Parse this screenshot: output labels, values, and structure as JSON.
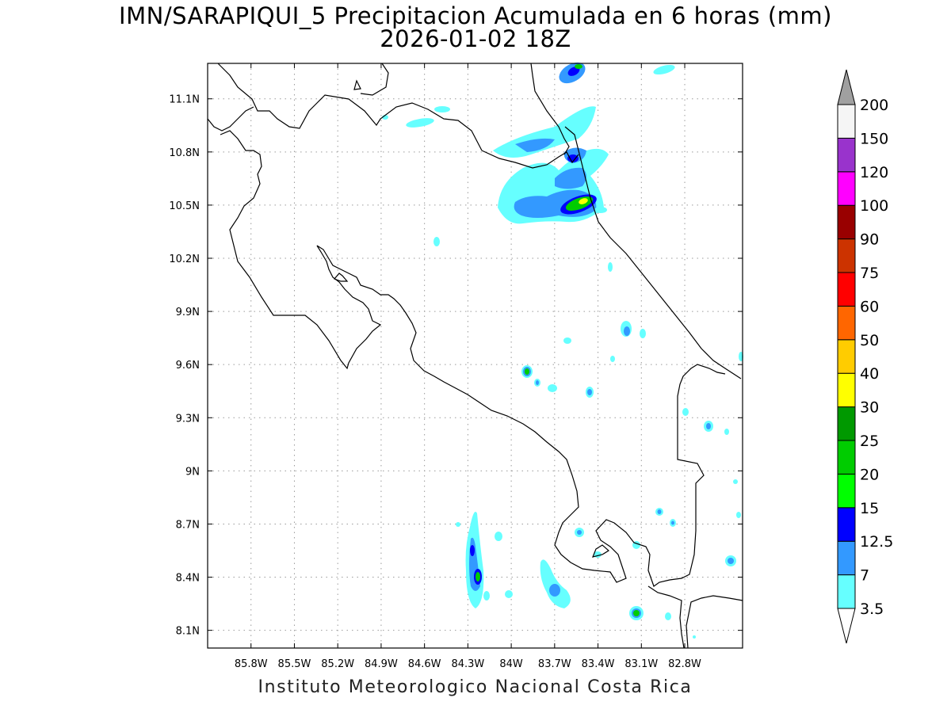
{
  "title": "IMN/SARAPIQUI_5 Precipitacion Acumulada en 6 horas (mm)",
  "subtitle": "2026-01-02 18Z",
  "footer": "Instituto Meteorologico Nacional Costa Rica",
  "map": {
    "lon_range": [
      -86.1,
      -82.4
    ],
    "lat_range": [
      8.0,
      11.3
    ],
    "lon_ticks": [
      "85.8W",
      "85.5W",
      "85.2W",
      "84.9W",
      "84.6W",
      "84.3W",
      "84W",
      "83.7W",
      "83.4W",
      "83.1W",
      "82.8W"
    ],
    "lat_ticks": [
      "8.1N",
      "8.4N",
      "8.7N",
      "9N",
      "9.3N",
      "9.6N",
      "9.9N",
      "10.2N",
      "10.5N",
      "10.8N",
      "11.1N"
    ],
    "grid": true
  },
  "colorbar": {
    "levels": [
      "3.5",
      "7",
      "12.5",
      "15",
      "20",
      "25",
      "30",
      "40",
      "50",
      "60",
      "75",
      "90",
      "100",
      "120",
      "150",
      "200"
    ],
    "colors": [
      "#66ffff",
      "#3399ff",
      "#0000ff",
      "#00ff00",
      "#00cc00",
      "#009900",
      "#ffff00",
      "#ffcc00",
      "#ff6600",
      "#ff0000",
      "#cc3300",
      "#990000",
      "#ff00ff",
      "#9933cc",
      "#f5f5f5"
    ],
    "max_triangle_color": "#a0a0a0",
    "min_triangle_color": "#ffffff"
  }
}
